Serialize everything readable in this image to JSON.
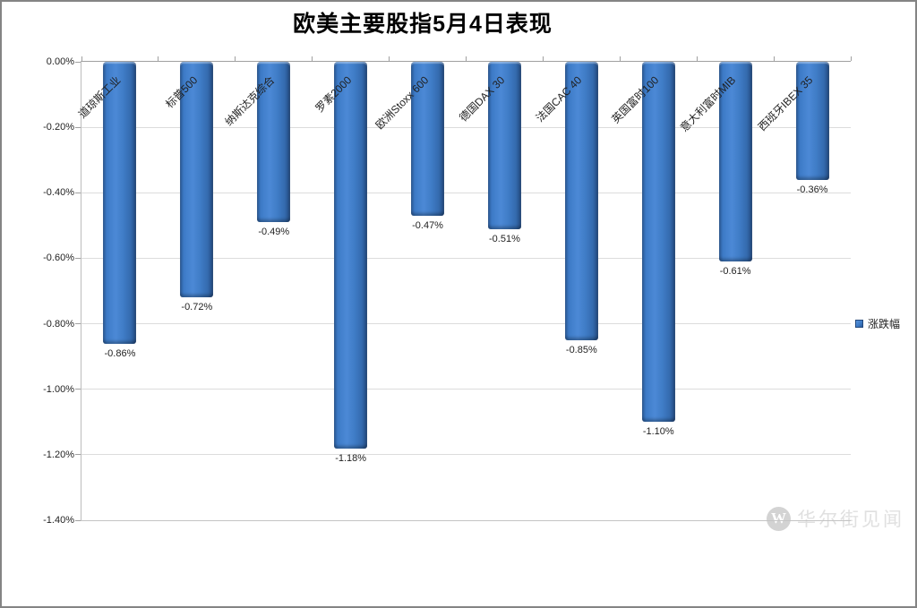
{
  "title": "欧美主要股指5月4日表现",
  "legend": {
    "label": "涨跌幅"
  },
  "watermark": {
    "icon_letter": "W",
    "text": "华尔街见闻"
  },
  "colors": {
    "bar": "#3d7bc7",
    "bar_dark": "#23497d",
    "axis": "#a0a0a0",
    "gridline": "#dcdcdc",
    "text": "#1f1f1f"
  },
  "y_axis": {
    "tick_labels": [
      "0.00%",
      "-0.20%",
      "-0.40%",
      "-0.60%",
      "-0.80%",
      "-1.00%",
      "-1.20%",
      "-1.40%"
    ]
  },
  "chart_data": {
    "type": "bar",
    "title": "欧美主要股指5月4日表现",
    "categories": [
      "道琼斯工业",
      "标普500",
      "纳斯达克综合",
      "罗素2000",
      "欧洲Stoxx 600",
      "德国DAX 30",
      "法国CAC 40",
      "英国富时100",
      "意大利富时MIB",
      "西班牙IBEX 35"
    ],
    "series": [
      {
        "name": "涨跌幅",
        "values": [
          -0.86,
          -0.72,
          -0.49,
          -1.18,
          -0.47,
          -0.51,
          -0.85,
          -1.1,
          -0.61,
          -0.36
        ]
      }
    ],
    "value_labels": [
      "-0.86%",
      "-0.72%",
      "-0.49%",
      "-1.18%",
      "-0.47%",
      "-0.51%",
      "-0.85%",
      "-1.10%",
      "-0.61%",
      "-0.36%"
    ],
    "xlabel": "",
    "ylabel": "",
    "ylim": [
      -1.4,
      0
    ],
    "y_tick_step": 0.2,
    "grid": true,
    "legend_position": "right",
    "data_label_position": "outside-end",
    "bar_direction": "down"
  }
}
